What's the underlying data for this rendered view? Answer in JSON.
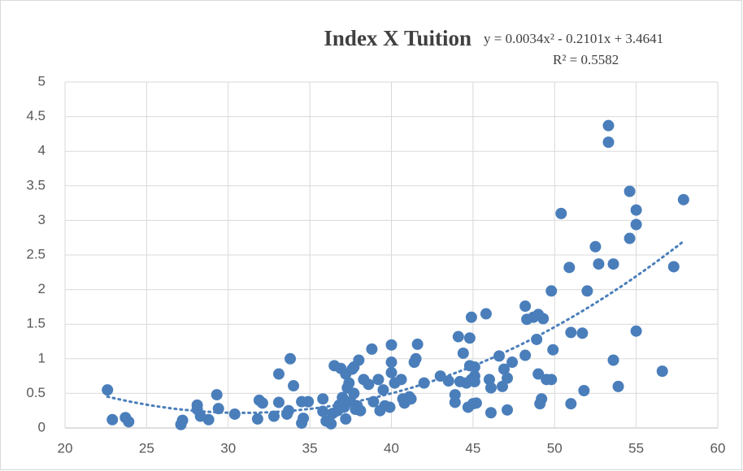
{
  "chart_data": {
    "type": "scatter",
    "title": "Index X Tuition",
    "annotations": [
      "y = 0.0034x² - 0.2101x + 3.4641",
      "R² = 0.5582"
    ],
    "trendline": {
      "type": "polynomial",
      "coefficients": [
        0.0034,
        -0.2101,
        3.4641
      ],
      "style": "dotted"
    },
    "color": "#4a7ebb",
    "grid": true,
    "xlim": [
      20,
      60
    ],
    "xticks": [
      20,
      25,
      30,
      35,
      40,
      45,
      50,
      55,
      60
    ],
    "ylim": [
      0,
      5
    ],
    "yticks": [
      0,
      0.5,
      1,
      1.5,
      2,
      2.5,
      3,
      3.5,
      4,
      4.5,
      5
    ],
    "x": [
      22.6,
      22.9,
      23.7,
      23.9,
      27.1,
      27.2,
      28.1,
      28.1,
      28.3,
      28.8,
      29.3,
      29.4,
      30.4,
      31.8,
      31.9,
      32.1,
      32.8,
      33.1,
      33.1,
      33.6,
      33.8,
      33.7,
      34.0,
      34.5,
      34.5,
      34.6,
      34.9,
      35.8,
      35.8,
      36.0,
      36.3,
      36.4,
      36.5,
      36.7,
      36.8,
      36.9,
      37.0,
      37.1,
      37.2,
      37.2,
      37.3,
      37.4,
      37.5,
      37.6,
      37.7,
      37.7,
      37.8,
      37.9,
      38.0,
      38.1,
      38.3,
      38.6,
      38.8,
      38.9,
      39.2,
      39.3,
      39.5,
      39.6,
      39.9,
      40.0,
      40.0,
      40.0,
      40.2,
      40.6,
      40.7,
      40.8,
      41.1,
      41.2,
      41.4,
      41.5,
      41.6,
      42.0,
      43.0,
      43.5,
      43.9,
      43.9,
      44.1,
      44.2,
      44.4,
      44.6,
      44.7,
      44.8,
      44.8,
      44.9,
      44.9,
      45.0,
      45.1,
      45.1,
      45.1,
      45.2,
      45.8,
      46.0,
      46.1,
      46.1,
      46.6,
      46.8,
      46.9,
      47.1,
      47.1,
      47.4,
      48.2,
      48.2,
      48.3,
      48.7,
      48.9,
      49.0,
      49.0,
      49.1,
      49.2,
      49.3,
      49.5,
      49.8,
      49.8,
      49.9,
      50.4,
      50.9,
      51.0,
      51.0,
      51.7,
      51.8,
      52.0,
      52.5,
      52.7,
      53.3,
      53.3,
      53.6,
      53.6,
      53.9,
      54.6,
      54.6,
      55.0,
      55.0,
      55.0,
      56.6,
      57.3,
      57.9
    ],
    "values": [
      0.55,
      0.12,
      0.15,
      0.09,
      0.05,
      0.11,
      0.33,
      0.27,
      0.17,
      0.12,
      0.48,
      0.28,
      0.2,
      0.13,
      0.4,
      0.36,
      0.17,
      0.78,
      0.37,
      0.2,
      1.0,
      0.25,
      0.61,
      0.07,
      0.38,
      0.14,
      0.38,
      0.24,
      0.42,
      0.1,
      0.06,
      0.21,
      0.9,
      0.25,
      0.33,
      0.86,
      0.44,
      0.3,
      0.13,
      0.78,
      0.58,
      0.65,
      0.38,
      0.85,
      0.5,
      0.88,
      0.27,
      0.32,
      0.98,
      0.25,
      0.7,
      0.63,
      1.14,
      0.38,
      0.7,
      0.25,
      0.55,
      0.32,
      0.3,
      0.95,
      1.2,
      0.8,
      0.65,
      0.7,
      0.42,
      0.36,
      0.45,
      0.42,
      0.95,
      1.0,
      1.21,
      0.65,
      0.75,
      0.68,
      0.48,
      0.37,
      1.32,
      0.67,
      1.08,
      0.65,
      0.3,
      1.3,
      0.9,
      1.6,
      0.7,
      0.35,
      0.88,
      0.75,
      0.67,
      0.36,
      1.65,
      0.7,
      0.58,
      0.22,
      1.04,
      0.6,
      0.85,
      0.72,
      0.26,
      0.95,
      1.76,
      1.05,
      1.57,
      1.6,
      1.28,
      1.64,
      0.78,
      0.35,
      0.42,
      1.58,
      0.7,
      0.7,
      1.98,
      1.13,
      3.1,
      2.32,
      1.38,
      0.35,
      1.37,
      0.54,
      1.98,
      2.62,
      2.37,
      4.37,
      4.13,
      2.37,
      0.98,
      0.6,
      3.42,
      2.74,
      3.15,
      2.94,
      1.4,
      0.82,
      2.33,
      3.3
    ]
  }
}
